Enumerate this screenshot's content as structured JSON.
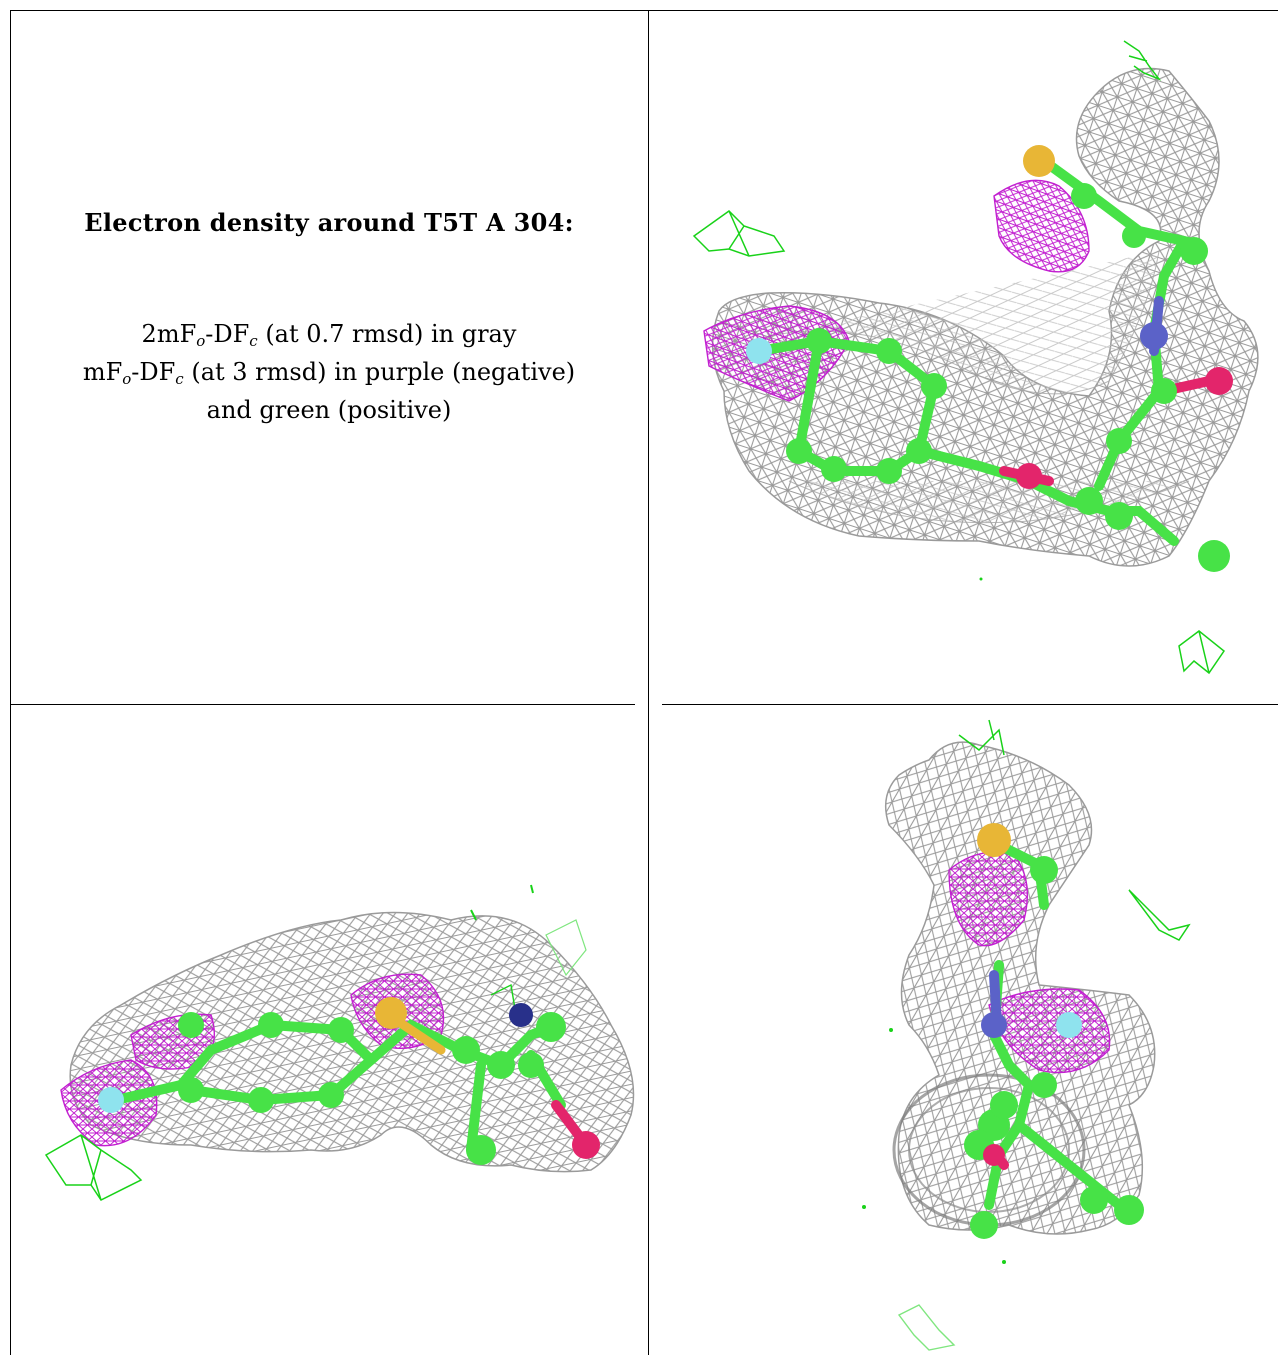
{
  "title": "Electron density around T5T A 304:",
  "legend": {
    "line1": {
      "p1": "2mF",
      "sub1": "o",
      "p2": "-DF",
      "sub2": "c",
      "p3": " (at 0.7 rmsd) in gray"
    },
    "line2": {
      "p1": "mF",
      "sub1": "o",
      "p2": "-DF",
      "sub2": "c",
      "p3": " (at 3 rmsd) in purple (negative)"
    },
    "line3": "and green (positive)"
  },
  "colors": {
    "mesh_2fofc": "#9a9a9a",
    "mesh_negative": "#c21fd0",
    "mesh_positive": "#19d219",
    "carbon": "#47e247",
    "nitrogen": "#5b62c8",
    "oxygen": "#e3256b",
    "sulfur": "#e8b636",
    "fluorine": "#8fe3ee"
  }
}
